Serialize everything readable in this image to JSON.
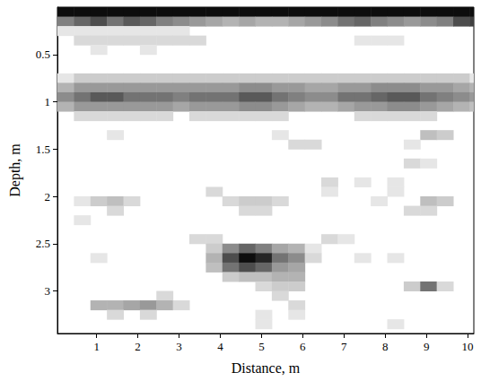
{
  "chart_data": {
    "type": "heatmap",
    "x_label": "Distance, m",
    "y_label": "Depth, m",
    "xlim": [
      0.05,
      10.15
    ],
    "ylim": [
      0,
      3.45
    ],
    "xticks": [
      1,
      2,
      3,
      4,
      5,
      6,
      7,
      8,
      9,
      10
    ],
    "yticks": [
      0.5,
      1,
      1.5,
      2,
      2.5,
      3
    ],
    "cell_width": 0.4,
    "cell_height": 0.1,
    "cells": [
      [
        0.25,
        0.05,
        0.95
      ],
      [
        0.65,
        0.05,
        0.95
      ],
      [
        1.05,
        0.05,
        0.95
      ],
      [
        1.45,
        0.05,
        0.95
      ],
      [
        1.85,
        0.05,
        0.95
      ],
      [
        2.25,
        0.05,
        0.95
      ],
      [
        2.65,
        0.05,
        0.95
      ],
      [
        3.05,
        0.05,
        0.95
      ],
      [
        3.45,
        0.05,
        0.95
      ],
      [
        3.85,
        0.05,
        0.95
      ],
      [
        4.25,
        0.05,
        0.95
      ],
      [
        4.65,
        0.05,
        0.95
      ],
      [
        5.05,
        0.05,
        0.95
      ],
      [
        5.45,
        0.05,
        0.95
      ],
      [
        5.85,
        0.05,
        0.95
      ],
      [
        6.25,
        0.05,
        0.95
      ],
      [
        6.65,
        0.05,
        0.95
      ],
      [
        7.05,
        0.05,
        0.95
      ],
      [
        7.45,
        0.05,
        0.95
      ],
      [
        7.85,
        0.05,
        0.95
      ],
      [
        8.25,
        0.05,
        0.95
      ],
      [
        8.65,
        0.05,
        0.95
      ],
      [
        9.05,
        0.05,
        0.95
      ],
      [
        9.45,
        0.05,
        0.95
      ],
      [
        9.85,
        0.05,
        0.95
      ],
      [
        10.25,
        0.05,
        0.95
      ],
      [
        0.25,
        0.15,
        0.5
      ],
      [
        0.65,
        0.15,
        0.6
      ],
      [
        1.05,
        0.15,
        0.7
      ],
      [
        1.45,
        0.15,
        0.55
      ],
      [
        1.85,
        0.15,
        0.65
      ],
      [
        2.25,
        0.15,
        0.6
      ],
      [
        2.65,
        0.15,
        0.5
      ],
      [
        3.05,
        0.15,
        0.45
      ],
      [
        3.45,
        0.15,
        0.4
      ],
      [
        3.85,
        0.15,
        0.35
      ],
      [
        4.25,
        0.15,
        0.3
      ],
      [
        4.65,
        0.15,
        0.35
      ],
      [
        5.05,
        0.15,
        0.3
      ],
      [
        5.45,
        0.15,
        0.3
      ],
      [
        5.85,
        0.15,
        0.35
      ],
      [
        6.25,
        0.15,
        0.4
      ],
      [
        6.65,
        0.15,
        0.45
      ],
      [
        7.05,
        0.15,
        0.55
      ],
      [
        7.45,
        0.15,
        0.6
      ],
      [
        7.85,
        0.15,
        0.5
      ],
      [
        8.25,
        0.15,
        0.45
      ],
      [
        8.65,
        0.15,
        0.4
      ],
      [
        9.05,
        0.15,
        0.45
      ],
      [
        9.45,
        0.15,
        0.5
      ],
      [
        9.85,
        0.15,
        0.7
      ],
      [
        10.25,
        0.15,
        0.75
      ],
      [
        0.25,
        0.25,
        0.1
      ],
      [
        0.65,
        0.25,
        0.1
      ],
      [
        1.05,
        0.25,
        0.1
      ],
      [
        1.45,
        0.25,
        0.1
      ],
      [
        1.85,
        0.25,
        0.1
      ],
      [
        2.25,
        0.25,
        0.1
      ],
      [
        2.65,
        0.25,
        0.1
      ],
      [
        3.05,
        0.25,
        0.1
      ],
      [
        0.65,
        0.35,
        0.15
      ],
      [
        1.05,
        0.35,
        0.15
      ],
      [
        1.45,
        0.35,
        0.15
      ],
      [
        1.85,
        0.35,
        0.15
      ],
      [
        2.25,
        0.35,
        0.15
      ],
      [
        2.65,
        0.35,
        0.15
      ],
      [
        3.05,
        0.35,
        0.15
      ],
      [
        3.45,
        0.35,
        0.15
      ],
      [
        7.45,
        0.35,
        0.1
      ],
      [
        7.85,
        0.35,
        0.1
      ],
      [
        8.25,
        0.35,
        0.1
      ],
      [
        1.05,
        0.45,
        0.1
      ],
      [
        2.25,
        0.45,
        0.1
      ],
      [
        0.25,
        0.75,
        0.1
      ],
      [
        0.65,
        0.75,
        0.2
      ],
      [
        1.05,
        0.75,
        0.2
      ],
      [
        1.45,
        0.75,
        0.2
      ],
      [
        1.85,
        0.75,
        0.2
      ],
      [
        2.25,
        0.75,
        0.2
      ],
      [
        2.65,
        0.75,
        0.2
      ],
      [
        3.05,
        0.75,
        0.2
      ],
      [
        3.45,
        0.75,
        0.2
      ],
      [
        3.85,
        0.75,
        0.2
      ],
      [
        4.25,
        0.75,
        0.2
      ],
      [
        4.65,
        0.75,
        0.2
      ],
      [
        5.05,
        0.75,
        0.2
      ],
      [
        5.45,
        0.75,
        0.2
      ],
      [
        5.85,
        0.75,
        0.2
      ],
      [
        6.25,
        0.75,
        0.2
      ],
      [
        6.65,
        0.75,
        0.2
      ],
      [
        7.05,
        0.75,
        0.2
      ],
      [
        7.45,
        0.75,
        0.2
      ],
      [
        7.85,
        0.75,
        0.2
      ],
      [
        8.25,
        0.75,
        0.2
      ],
      [
        8.65,
        0.75,
        0.2
      ],
      [
        9.05,
        0.75,
        0.2
      ],
      [
        9.45,
        0.75,
        0.2
      ],
      [
        9.85,
        0.75,
        0.2
      ],
      [
        10.25,
        0.75,
        0.1
      ],
      [
        0.25,
        0.85,
        0.3
      ],
      [
        0.65,
        0.85,
        0.4
      ],
      [
        1.05,
        0.85,
        0.4
      ],
      [
        1.45,
        0.85,
        0.4
      ],
      [
        1.85,
        0.85,
        0.4
      ],
      [
        2.25,
        0.85,
        0.4
      ],
      [
        2.65,
        0.85,
        0.4
      ],
      [
        3.05,
        0.85,
        0.4
      ],
      [
        3.45,
        0.85,
        0.4
      ],
      [
        3.85,
        0.85,
        0.4
      ],
      [
        4.25,
        0.85,
        0.4
      ],
      [
        4.65,
        0.85,
        0.45
      ],
      [
        5.05,
        0.85,
        0.45
      ],
      [
        5.45,
        0.85,
        0.4
      ],
      [
        5.85,
        0.85,
        0.4
      ],
      [
        6.25,
        0.85,
        0.35
      ],
      [
        6.65,
        0.85,
        0.35
      ],
      [
        7.05,
        0.85,
        0.4
      ],
      [
        7.45,
        0.85,
        0.4
      ],
      [
        7.85,
        0.85,
        0.45
      ],
      [
        8.25,
        0.85,
        0.45
      ],
      [
        8.65,
        0.85,
        0.45
      ],
      [
        9.05,
        0.85,
        0.4
      ],
      [
        9.45,
        0.85,
        0.4
      ],
      [
        9.85,
        0.85,
        0.35
      ],
      [
        10.25,
        0.85,
        0.3
      ],
      [
        0.25,
        0.95,
        0.45
      ],
      [
        0.65,
        0.95,
        0.55
      ],
      [
        1.05,
        0.95,
        0.65
      ],
      [
        1.45,
        0.95,
        0.65
      ],
      [
        1.85,
        0.95,
        0.55
      ],
      [
        2.25,
        0.95,
        0.55
      ],
      [
        2.65,
        0.95,
        0.55
      ],
      [
        3.05,
        0.95,
        0.5
      ],
      [
        3.45,
        0.95,
        0.55
      ],
      [
        3.85,
        0.95,
        0.55
      ],
      [
        4.25,
        0.95,
        0.55
      ],
      [
        4.65,
        0.95,
        0.65
      ],
      [
        5.05,
        0.95,
        0.65
      ],
      [
        5.45,
        0.95,
        0.55
      ],
      [
        5.85,
        0.95,
        0.5
      ],
      [
        6.25,
        0.95,
        0.45
      ],
      [
        6.65,
        0.95,
        0.45
      ],
      [
        7.05,
        0.95,
        0.55
      ],
      [
        7.45,
        0.95,
        0.55
      ],
      [
        7.85,
        0.95,
        0.6
      ],
      [
        8.25,
        0.95,
        0.65
      ],
      [
        8.65,
        0.95,
        0.65
      ],
      [
        9.05,
        0.95,
        0.55
      ],
      [
        9.45,
        0.95,
        0.5
      ],
      [
        9.85,
        0.95,
        0.45
      ],
      [
        10.25,
        0.95,
        0.4
      ],
      [
        0.25,
        1.05,
        0.3
      ],
      [
        0.65,
        1.05,
        0.4
      ],
      [
        1.05,
        1.05,
        0.4
      ],
      [
        1.45,
        1.05,
        0.4
      ],
      [
        1.85,
        1.05,
        0.4
      ],
      [
        2.25,
        1.05,
        0.4
      ],
      [
        2.65,
        1.05,
        0.4
      ],
      [
        3.05,
        1.05,
        0.35
      ],
      [
        3.45,
        1.05,
        0.4
      ],
      [
        3.85,
        1.05,
        0.4
      ],
      [
        4.25,
        1.05,
        0.4
      ],
      [
        4.65,
        1.05,
        0.45
      ],
      [
        5.05,
        1.05,
        0.45
      ],
      [
        5.45,
        1.05,
        0.4
      ],
      [
        5.85,
        1.05,
        0.35
      ],
      [
        6.25,
        1.05,
        0.3
      ],
      [
        6.65,
        1.05,
        0.3
      ],
      [
        7.05,
        1.05,
        0.35
      ],
      [
        7.45,
        1.05,
        0.4
      ],
      [
        7.85,
        1.05,
        0.4
      ],
      [
        8.25,
        1.05,
        0.45
      ],
      [
        8.65,
        1.05,
        0.45
      ],
      [
        9.05,
        1.05,
        0.4
      ],
      [
        9.45,
        1.05,
        0.35
      ],
      [
        9.85,
        1.05,
        0.3
      ],
      [
        10.25,
        1.05,
        0.25
      ],
      [
        0.65,
        1.15,
        0.15
      ],
      [
        1.05,
        1.15,
        0.15
      ],
      [
        1.45,
        1.15,
        0.15
      ],
      [
        1.85,
        1.15,
        0.15
      ],
      [
        2.25,
        1.15,
        0.15
      ],
      [
        2.65,
        1.15,
        0.15
      ],
      [
        3.45,
        1.15,
        0.15
      ],
      [
        3.85,
        1.15,
        0.15
      ],
      [
        4.25,
        1.15,
        0.15
      ],
      [
        4.65,
        1.15,
        0.15
      ],
      [
        5.05,
        1.15,
        0.15
      ],
      [
        5.45,
        1.15,
        0.15
      ],
      [
        7.45,
        1.15,
        0.15
      ],
      [
        7.85,
        1.15,
        0.15
      ],
      [
        8.25,
        1.15,
        0.15
      ],
      [
        8.65,
        1.15,
        0.15
      ],
      [
        9.05,
        1.15,
        0.15
      ],
      [
        1.45,
        1.35,
        0.1
      ],
      [
        5.45,
        1.35,
        0.1
      ],
      [
        9.05,
        1.35,
        0.25
      ],
      [
        9.45,
        1.35,
        0.2
      ],
      [
        5.85,
        1.45,
        0.15
      ],
      [
        6.25,
        1.45,
        0.15
      ],
      [
        8.65,
        1.45,
        0.1
      ],
      [
        8.65,
        1.65,
        0.15
      ],
      [
        9.05,
        1.65,
        0.1
      ],
      [
        6.65,
        1.85,
        0.15
      ],
      [
        7.45,
        1.85,
        0.1
      ],
      [
        8.25,
        1.85,
        0.1
      ],
      [
        3.85,
        1.95,
        0.15
      ],
      [
        6.65,
        1.95,
        0.1
      ],
      [
        8.25,
        1.95,
        0.1
      ],
      [
        0.65,
        2.05,
        0.1
      ],
      [
        1.05,
        2.05,
        0.2
      ],
      [
        1.45,
        2.05,
        0.25
      ],
      [
        1.85,
        2.05,
        0.15
      ],
      [
        4.25,
        2.05,
        0.15
      ],
      [
        4.65,
        2.05,
        0.2
      ],
      [
        5.05,
        2.05,
        0.2
      ],
      [
        5.45,
        2.05,
        0.15
      ],
      [
        7.85,
        2.05,
        0.1
      ],
      [
        9.05,
        2.05,
        0.25
      ],
      [
        9.45,
        2.05,
        0.2
      ],
      [
        1.45,
        2.15,
        0.15
      ],
      [
        4.65,
        2.15,
        0.15
      ],
      [
        5.05,
        2.15,
        0.15
      ],
      [
        8.65,
        2.15,
        0.15
      ],
      [
        9.05,
        2.15,
        0.15
      ],
      [
        0.65,
        2.25,
        0.1
      ],
      [
        3.45,
        2.45,
        0.15
      ],
      [
        3.85,
        2.45,
        0.15
      ],
      [
        6.65,
        2.45,
        0.15
      ],
      [
        7.05,
        2.45,
        0.1
      ],
      [
        3.85,
        2.55,
        0.2
      ],
      [
        4.25,
        2.55,
        0.45
      ],
      [
        4.65,
        2.55,
        0.6
      ],
      [
        5.05,
        2.55,
        0.5
      ],
      [
        5.45,
        2.55,
        0.35
      ],
      [
        5.85,
        2.55,
        0.3
      ],
      [
        6.25,
        2.55,
        0.1
      ],
      [
        1.05,
        2.65,
        0.1
      ],
      [
        3.85,
        2.65,
        0.3
      ],
      [
        4.25,
        2.65,
        0.7
      ],
      [
        4.65,
        2.65,
        0.95
      ],
      [
        5.05,
        2.65,
        0.85
      ],
      [
        5.45,
        2.65,
        0.55
      ],
      [
        5.85,
        2.65,
        0.45
      ],
      [
        6.25,
        2.65,
        0.15
      ],
      [
        7.45,
        2.65,
        0.1
      ],
      [
        8.25,
        2.65,
        0.1
      ],
      [
        3.85,
        2.75,
        0.25
      ],
      [
        4.25,
        2.75,
        0.55
      ],
      [
        4.65,
        2.75,
        0.7
      ],
      [
        5.05,
        2.75,
        0.6
      ],
      [
        5.45,
        2.75,
        0.4
      ],
      [
        5.85,
        2.75,
        0.35
      ],
      [
        4.25,
        2.85,
        0.2
      ],
      [
        4.65,
        2.85,
        0.25
      ],
      [
        5.05,
        2.85,
        0.25
      ],
      [
        5.45,
        2.85,
        0.3
      ],
      [
        5.85,
        2.85,
        0.3
      ],
      [
        5.05,
        2.95,
        0.15
      ],
      [
        5.45,
        2.95,
        0.2
      ],
      [
        5.85,
        2.95,
        0.2
      ],
      [
        8.65,
        2.95,
        0.2
      ],
      [
        9.05,
        2.95,
        0.55
      ],
      [
        9.45,
        2.95,
        0.15
      ],
      [
        2.65,
        3.05,
        0.15
      ],
      [
        5.45,
        3.05,
        0.15
      ],
      [
        1.05,
        3.15,
        0.3
      ],
      [
        1.45,
        3.15,
        0.3
      ],
      [
        1.85,
        3.15,
        0.35
      ],
      [
        2.25,
        3.15,
        0.4
      ],
      [
        2.65,
        3.15,
        0.3
      ],
      [
        3.05,
        3.15,
        0.15
      ],
      [
        5.85,
        3.15,
        0.15
      ],
      [
        1.45,
        3.25,
        0.15
      ],
      [
        2.25,
        3.25,
        0.15
      ],
      [
        5.05,
        3.25,
        0.1
      ],
      [
        5.85,
        3.25,
        0.1
      ],
      [
        5.05,
        3.35,
        0.1
      ],
      [
        8.25,
        3.35,
        0.1
      ]
    ]
  }
}
